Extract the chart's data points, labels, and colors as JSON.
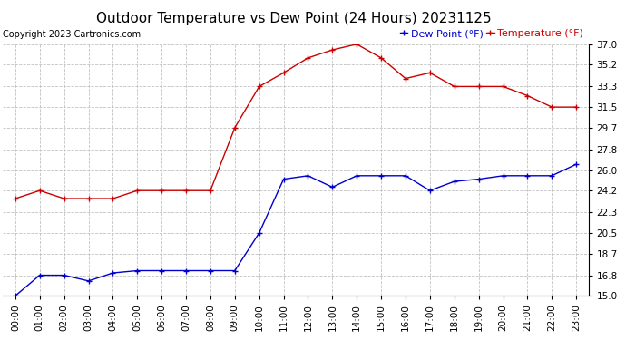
{
  "title": "Outdoor Temperature vs Dew Point (24 Hours) 20231125",
  "copyright": "Copyright 2023 Cartronics.com",
  "legend_dew": "Dew Point (°F)",
  "legend_temp": "Temperature (°F)",
  "hours": [
    "00:00",
    "01:00",
    "02:00",
    "03:00",
    "04:00",
    "05:00",
    "06:00",
    "07:00",
    "08:00",
    "09:00",
    "10:00",
    "11:00",
    "12:00",
    "13:00",
    "14:00",
    "15:00",
    "16:00",
    "17:00",
    "18:00",
    "19:00",
    "20:00",
    "21:00",
    "22:00",
    "23:00"
  ],
  "temperature": [
    23.5,
    24.2,
    23.5,
    23.5,
    23.5,
    24.2,
    24.2,
    24.2,
    24.2,
    29.7,
    33.3,
    34.5,
    35.8,
    36.5,
    37.0,
    35.8,
    34.0,
    34.5,
    33.3,
    33.3,
    33.3,
    32.5,
    31.5,
    31.5
  ],
  "dew_point": [
    15.0,
    16.8,
    16.8,
    16.3,
    17.0,
    17.2,
    17.2,
    17.2,
    17.2,
    17.2,
    20.5,
    25.2,
    25.5,
    24.5,
    25.5,
    25.5,
    25.5,
    24.2,
    25.0,
    25.2,
    25.5,
    25.5,
    25.5,
    26.5
  ],
  "temp_color": "#cc0000",
  "dew_color": "#0000cc",
  "bg_color": "#ffffff",
  "grid_color": "#bbbbbb",
  "ylim_min": 15.0,
  "ylim_max": 37.0,
  "yticks": [
    15.0,
    16.8,
    18.7,
    20.5,
    22.3,
    24.2,
    26.0,
    27.8,
    29.7,
    31.5,
    33.3,
    35.2,
    37.0
  ],
  "title_fontsize": 11,
  "copyright_fontsize": 7,
  "legend_fontsize": 8,
  "tick_fontsize": 7.5,
  "marker_size": 4
}
